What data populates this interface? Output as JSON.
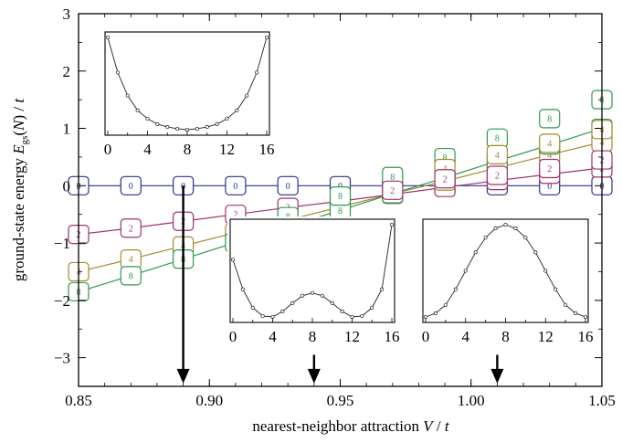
{
  "chart_data": {
    "type": "line",
    "xlabel_main": "nearest-neighbor attraction ",
    "xlabel_var": "V",
    "xlabel_sep": " / ",
    "xlabel_t": "t",
    "ylabel_main": "ground-state energy ",
    "ylabel_E": "E",
    "ylabel_sub": "gs",
    "ylabel_mid": "(",
    "ylabel_N": "N",
    "ylabel_close": ") / ",
    "ylabel_t": "t",
    "xlim": [
      0.85,
      1.05
    ],
    "ylim": [
      -3.5,
      3
    ],
    "xticks": [
      "0.85",
      "0.90",
      "0.95",
      "1.00",
      "1.05"
    ],
    "xtick_values": [
      0.85,
      0.9,
      0.95,
      1.0,
      1.05
    ],
    "yticks": [
      "3",
      "2",
      "1",
      "0",
      "−1",
      "−2",
      "−3"
    ],
    "ytick_values": [
      3,
      2,
      1,
      0,
      -1,
      -2,
      -3
    ],
    "x_markers": [
      0.85,
      0.87,
      0.89,
      0.91,
      0.93,
      0.95,
      0.97,
      0.99,
      1.01,
      1.03,
      1.05
    ],
    "series": [
      {
        "name": "0",
        "color": "#2f2f8f",
        "values": [
          0,
          0,
          0,
          0,
          0,
          0,
          0,
          0,
          0,
          0,
          0
        ]
      },
      {
        "name": "2",
        "color": "#a0306f",
        "values": [
          -0.85,
          -0.74,
          -0.62,
          -0.5,
          -0.38,
          -0.27,
          -0.15,
          -0.03,
          0.09,
          0.2,
          0.31
        ]
      },
      {
        "name": "4",
        "color": "#a48a2c",
        "values": [
          -1.5,
          -1.28,
          -1.05,
          -0.82,
          -0.6,
          -0.37,
          -0.14,
          0.08,
          0.31,
          0.54,
          0.76
        ]
      },
      {
        "name": "8",
        "color": "#2e9a4e",
        "values": [
          -1.85,
          -1.57,
          -1.28,
          -0.99,
          -0.71,
          -0.43,
          -0.14,
          0.14,
          0.43,
          0.71,
          1.0
        ]
      }
    ],
    "extra_marks": [
      {
        "x": 0.93,
        "y": -0.54,
        "label": "8",
        "color": "#2e9a4e"
      },
      {
        "x": 0.95,
        "y": -0.18,
        "label": "8",
        "color": "#2e9a4e"
      },
      {
        "x": 0.97,
        "y": 0.16,
        "label": "8",
        "color": "#2e9a4e"
      },
      {
        "x": 0.99,
        "y": 0.49,
        "label": "8",
        "color": "#2e9a4e"
      },
      {
        "x": 1.01,
        "y": 0.83,
        "label": "8",
        "color": "#2e9a4e"
      },
      {
        "x": 1.03,
        "y": 1.17,
        "label": "8",
        "color": "#2e9a4e"
      },
      {
        "x": 1.05,
        "y": 1.5,
        "label": "8",
        "color": "#2e9a4e"
      },
      {
        "x": 0.99,
        "y": 0.3,
        "label": "4",
        "color": "#a48a2c"
      },
      {
        "x": 1.01,
        "y": 0.54,
        "label": "4",
        "color": "#a48a2c"
      },
      {
        "x": 1.03,
        "y": 0.74,
        "label": "4",
        "color": "#a48a2c"
      },
      {
        "x": 1.05,
        "y": 0.98,
        "label": "4",
        "color": "#a48a2c"
      },
      {
        "x": 0.99,
        "y": 0.12,
        "label": "2",
        "color": "#a0306f"
      },
      {
        "x": 1.01,
        "y": 0.18,
        "label": "2",
        "color": "#a0306f"
      },
      {
        "x": 1.03,
        "y": 0.3,
        "label": "2",
        "color": "#a0306f"
      },
      {
        "x": 1.05,
        "y": 0.45,
        "label": "2",
        "color": "#a0306f"
      },
      {
        "x": 0.97,
        "y": -0.08,
        "label": "2",
        "color": "#a0306f"
      }
    ],
    "arrows": [
      {
        "x": 0.89,
        "y_from": 0.0,
        "y_to": -3.45
      },
      {
        "x": 0.94,
        "y_from": -2.95,
        "y_to": -3.45
      },
      {
        "x": 1.01,
        "y_from": -2.95,
        "y_to": -3.45
      }
    ],
    "insets": [
      {
        "name": "inset-top-left",
        "xticks": [
          "0",
          "4",
          "8",
          "12",
          "16"
        ],
        "xtick_values": [
          0,
          4,
          8,
          12,
          16
        ],
        "x": [
          0,
          1,
          2,
          3,
          4,
          5,
          6,
          7,
          8,
          9,
          10,
          11,
          12,
          13,
          14,
          15,
          16
        ],
        "values": [
          1.0,
          0.62,
          0.37,
          0.21,
          0.12,
          0.06,
          0.03,
          0.01,
          0.0,
          0.01,
          0.03,
          0.06,
          0.12,
          0.21,
          0.37,
          0.62,
          1.0
        ]
      },
      {
        "name": "inset-bottom-middle",
        "xticks": [
          "0",
          "4",
          "8",
          "12",
          "16"
        ],
        "xtick_values": [
          0,
          4,
          8,
          12,
          16
        ],
        "x": [
          0,
          1,
          2,
          3,
          4,
          5,
          6,
          7,
          8,
          9,
          10,
          11,
          12,
          13,
          14,
          15,
          16
        ],
        "values": [
          0.62,
          0.3,
          0.1,
          0.01,
          0.0,
          0.06,
          0.15,
          0.23,
          0.26,
          0.23,
          0.15,
          0.06,
          0.0,
          0.01,
          0.1,
          0.3,
          1.0
        ]
      },
      {
        "name": "inset-bottom-right",
        "xticks": [
          "0",
          "4",
          "8",
          "12",
          "16"
        ],
        "xtick_values": [
          0,
          4,
          8,
          12,
          16
        ],
        "x": [
          0,
          1,
          2,
          3,
          4,
          5,
          6,
          7,
          8,
          9,
          10,
          11,
          12,
          13,
          14,
          15,
          16
        ],
        "values": [
          0.0,
          0.04,
          0.13,
          0.3,
          0.5,
          0.7,
          0.86,
          0.96,
          1.0,
          0.96,
          0.86,
          0.7,
          0.5,
          0.3,
          0.13,
          0.04,
          0.0
        ]
      }
    ]
  }
}
